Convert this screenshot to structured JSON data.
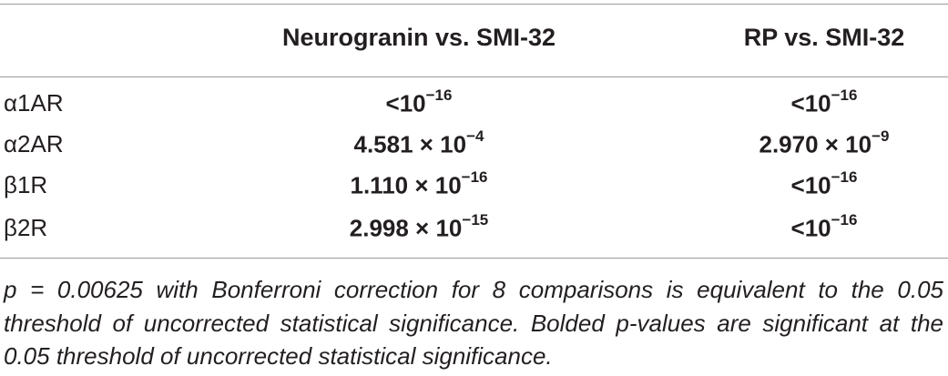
{
  "table": {
    "columns": [
      "Neurogranin vs. SMI-32",
      "RP vs. SMI-32"
    ],
    "rows": [
      {
        "label": "α1AR",
        "cells": [
          {
            "base": "<10",
            "exponent": "−16"
          },
          {
            "base": "<10",
            "exponent": "−16"
          }
        ]
      },
      {
        "label": "α2AR",
        "cells": [
          {
            "base": "4.581 × 10",
            "exponent": "−4"
          },
          {
            "base": "2.970 × 10",
            "exponent": "−9"
          }
        ]
      },
      {
        "label": "β1R",
        "cells": [
          {
            "base": "1.110 × 10",
            "exponent": "−16"
          },
          {
            "base": "<10",
            "exponent": "−16"
          }
        ]
      },
      {
        "label": "β2R",
        "cells": [
          {
            "base": "2.998 × 10",
            "exponent": "−15"
          },
          {
            "base": "<10",
            "exponent": "−16"
          }
        ]
      }
    ],
    "footnote": "p = 0.00625 with Bonferroni correction for 8 comparisons is equivalent to the 0.05 threshold of uncorrected statistical significance. Bolded p-values are significant at the 0.05 threshold of uncorrected statistical significance."
  }
}
